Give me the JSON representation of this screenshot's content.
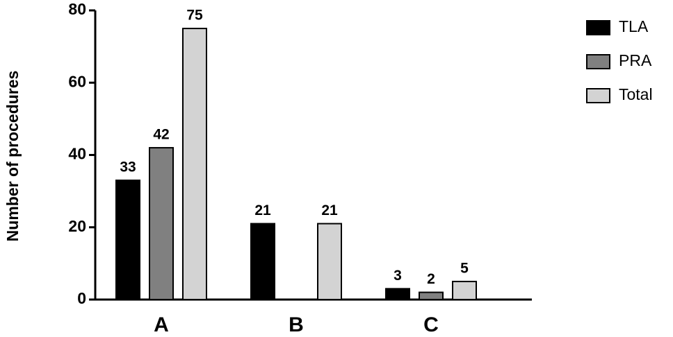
{
  "chart_data": {
    "type": "bar",
    "y_label": "Number of procedures",
    "categories": [
      "A",
      "B",
      "C"
    ],
    "series": [
      {
        "name": "TLA",
        "color": "#000000",
        "values": [
          33,
          21,
          3
        ]
      },
      {
        "name": "PRA",
        "color": "#808080",
        "values": [
          42,
          null,
          2
        ]
      },
      {
        "name": "Total",
        "color": "#d3d3d3",
        "values": [
          75,
          21,
          5
        ]
      }
    ],
    "ylim": [
      0,
      80
    ],
    "yticks": [
      0,
      20,
      40,
      60,
      80
    ],
    "legend": "right"
  }
}
